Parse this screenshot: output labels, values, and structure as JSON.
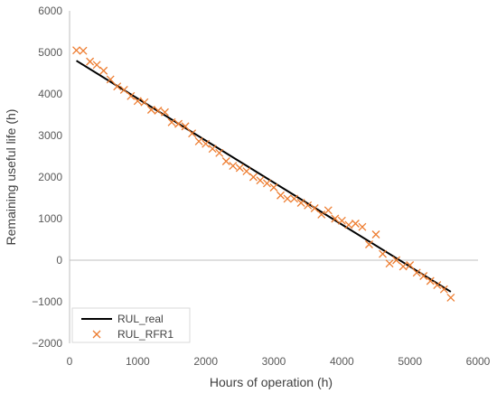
{
  "chart_data": {
    "type": "line",
    "title": "",
    "xlabel": "Hours of operation (h)",
    "ylabel": "Remaining useful life (h)",
    "xlim": [
      0,
      6000
    ],
    "ylim": [
      -2000,
      6000
    ],
    "x_ticks": [
      "0",
      "1000",
      "2000",
      "3000",
      "4000",
      "5000",
      "6000"
    ],
    "y_ticks": [
      "6000",
      "5000",
      "4000",
      "3000",
      "2000",
      "1000",
      "0",
      "−1000",
      "−2000"
    ],
    "grid": false,
    "legend_position": "bottom-left",
    "series": [
      {
        "name": "RUL_real",
        "style": "line",
        "color": "#000000",
        "x": [
          100,
          5600
        ],
        "y": [
          4800,
          -760
        ]
      },
      {
        "name": "RUL_RFR1",
        "style": "marker-x",
        "color": "#ED7D31",
        "x": [
          100,
          200,
          300,
          400,
          500,
          600,
          700,
          800,
          900,
          1000,
          1100,
          1200,
          1300,
          1400,
          1500,
          1600,
          1700,
          1800,
          1900,
          2000,
          2100,
          2200,
          2300,
          2400,
          2500,
          2600,
          2700,
          2800,
          2900,
          3000,
          3100,
          3200,
          3300,
          3400,
          3500,
          3600,
          3700,
          3800,
          3900,
          4000,
          4100,
          4200,
          4300,
          4400,
          4500,
          4600,
          4700,
          4800,
          4900,
          5000,
          5100,
          5200,
          5300,
          5400,
          5500,
          5600
        ],
        "y": [
          5050,
          5040,
          4780,
          4700,
          4560,
          4350,
          4180,
          4100,
          3950,
          3830,
          3800,
          3620,
          3600,
          3560,
          3320,
          3280,
          3220,
          3050,
          2860,
          2800,
          2680,
          2580,
          2380,
          2270,
          2220,
          2140,
          2000,
          1920,
          1850,
          1750,
          1560,
          1480,
          1480,
          1380,
          1320,
          1250,
          1100,
          1200,
          1000,
          950,
          850,
          880,
          800,
          380,
          620,
          150,
          -80,
          0,
          -150,
          -120,
          -300,
          -380,
          -500,
          -600,
          -700,
          -900
        ]
      }
    ]
  }
}
